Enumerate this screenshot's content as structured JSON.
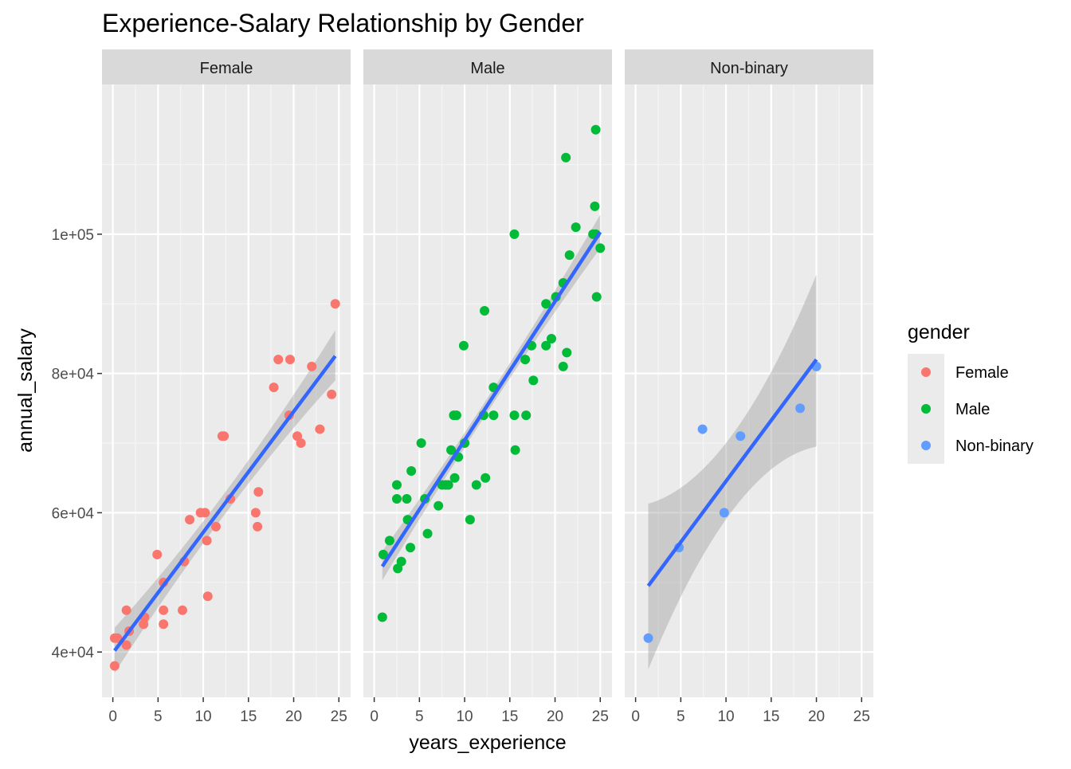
{
  "chart_data": {
    "type": "scatter",
    "title": "Experience-Salary Relationship by Gender",
    "xlabel": "years_experience",
    "ylabel": "annual_salary",
    "x_ticks": [
      "0",
      "5",
      "10",
      "15",
      "20",
      "25"
    ],
    "x_tick_values": [
      0,
      5,
      10,
      15,
      20,
      25
    ],
    "y_ticks": [
      "4e+04",
      "6e+04",
      "8e+04",
      "1e+05"
    ],
    "y_tick_values": [
      40000,
      60000,
      80000,
      100000
    ],
    "xlim": [
      -1.2,
      26.3
    ],
    "ylim": [
      33500,
      121500
    ],
    "grid": true,
    "legend": {
      "title": "gender",
      "position": "right",
      "entries": [
        "Female",
        "Male",
        "Non-binary"
      ]
    },
    "panels": [
      {
        "name": "Female",
        "color": "#F8766D",
        "points": [
          [
            0.2,
            38000
          ],
          [
            0.2,
            42000
          ],
          [
            0.5,
            42000
          ],
          [
            1.5,
            41000
          ],
          [
            1.5,
            46000
          ],
          [
            1.8,
            43000
          ],
          [
            3.4,
            44000
          ],
          [
            3.5,
            45000
          ],
          [
            4.9,
            54000
          ],
          [
            5.6,
            50000
          ],
          [
            5.6,
            46000
          ],
          [
            5.6,
            44000
          ],
          [
            7.7,
            46000
          ],
          [
            7.9,
            53000
          ],
          [
            8.5,
            59000
          ],
          [
            9.7,
            60000
          ],
          [
            10.2,
            60000
          ],
          [
            10.4,
            56000
          ],
          [
            10.5,
            48000
          ],
          [
            11.4,
            58000
          ],
          [
            12.1,
            71000
          ],
          [
            12.3,
            71000
          ],
          [
            13.0,
            62000
          ],
          [
            15.8,
            60000
          ],
          [
            16.0,
            58000
          ],
          [
            16.1,
            63000
          ],
          [
            17.8,
            78000
          ],
          [
            18.3,
            82000
          ],
          [
            19.5,
            74000
          ],
          [
            19.6,
            82000
          ],
          [
            20.4,
            71000
          ],
          [
            20.8,
            70000
          ],
          [
            22.0,
            81000
          ],
          [
            22.9,
            72000
          ],
          [
            24.2,
            77000
          ],
          [
            24.6,
            90000
          ]
        ],
        "trend": {
          "x": [
            0.2,
            24.6
          ],
          "y": [
            40200,
            82500
          ],
          "ci_lower": [
            37000,
            79000
          ],
          "ci_upper": [
            43500,
            86200
          ]
        }
      },
      {
        "name": "Male",
        "color": "#00BA38",
        "points": [
          [
            0.9,
            45000
          ],
          [
            1.0,
            54000
          ],
          [
            1.7,
            56000
          ],
          [
            2.5,
            64000
          ],
          [
            2.5,
            62000
          ],
          [
            2.6,
            52000
          ],
          [
            3.0,
            53000
          ],
          [
            3.6,
            62000
          ],
          [
            3.7,
            59000
          ],
          [
            4.0,
            55000
          ],
          [
            4.1,
            66000
          ],
          [
            5.2,
            70000
          ],
          [
            5.6,
            62000
          ],
          [
            5.9,
            57000
          ],
          [
            7.1,
            61000
          ],
          [
            7.5,
            64000
          ],
          [
            7.9,
            64000
          ],
          [
            8.2,
            64000
          ],
          [
            8.5,
            69000
          ],
          [
            8.8,
            74000
          ],
          [
            8.9,
            65000
          ],
          [
            9.1,
            74000
          ],
          [
            9.3,
            68000
          ],
          [
            9.9,
            84000
          ],
          [
            10.0,
            70000
          ],
          [
            10.6,
            59000
          ],
          [
            11.3,
            64000
          ],
          [
            12.1,
            74000
          ],
          [
            12.2,
            89000
          ],
          [
            12.3,
            65000
          ],
          [
            13.2,
            78000
          ],
          [
            13.2,
            74000
          ],
          [
            15.5,
            74000
          ],
          [
            15.5,
            100000
          ],
          [
            15.6,
            69000
          ],
          [
            16.7,
            82000
          ],
          [
            16.8,
            74000
          ],
          [
            17.4,
            84000
          ],
          [
            17.6,
            79000
          ],
          [
            19.0,
            84000
          ],
          [
            19.0,
            90000
          ],
          [
            19.6,
            85000
          ],
          [
            20.1,
            91000
          ],
          [
            20.9,
            93000
          ],
          [
            20.9,
            81000
          ],
          [
            21.2,
            111000
          ],
          [
            21.3,
            83000
          ],
          [
            21.6,
            97000
          ],
          [
            22.3,
            101000
          ],
          [
            24.2,
            100000
          ],
          [
            24.4,
            104000
          ],
          [
            24.5,
            100000
          ],
          [
            24.5,
            115000
          ],
          [
            24.6,
            91000
          ],
          [
            25.0,
            98000
          ]
        ],
        "trend": {
          "x": [
            0.9,
            25.0
          ],
          "y": [
            52300,
            100300
          ],
          "ci_lower": [
            50300,
            98000
          ],
          "ci_upper": [
            54500,
            102800
          ]
        }
      },
      {
        "name": "Non-binary",
        "color": "#619CFF",
        "points": [
          [
            1.4,
            42000
          ],
          [
            4.8,
            55000
          ],
          [
            7.4,
            72000
          ],
          [
            9.8,
            60000
          ],
          [
            11.6,
            71000
          ],
          [
            18.2,
            75000
          ],
          [
            20.0,
            81000
          ]
        ],
        "trend": {
          "x": [
            1.4,
            20.0
          ],
          "y": [
            49500,
            82000
          ],
          "ci_lower": [
            37500,
            69500
          ],
          "ci_upper": [
            61300,
            94200
          ]
        }
      }
    ]
  }
}
